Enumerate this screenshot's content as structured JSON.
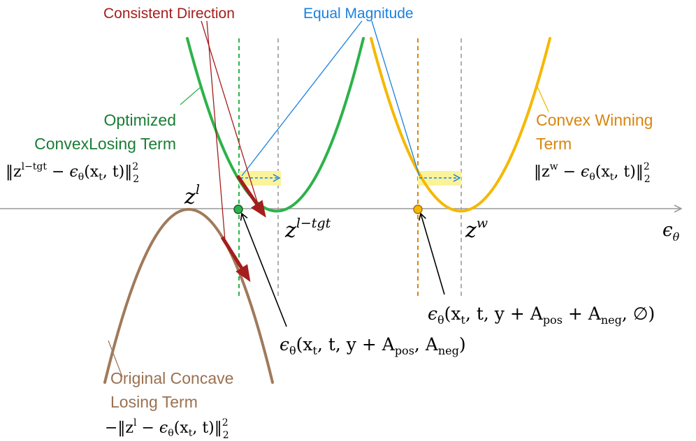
{
  "annotations": {
    "consistent_direction": "Consistent Direction",
    "equal_magnitude": "Equal Magnitude"
  },
  "curves": {
    "optimized_losing": {
      "label_line1": "Optimized",
      "label_line2": "ConvexLosing Term",
      "formula": "‖z^{l−tgt} − ε_θ(x_t, t)‖²₂",
      "formula_base": "‖z",
      "formula_sup": "l−tgt",
      "formula_rest": " − ϵ",
      "formula_sub": "θ",
      "formula_tail": "(x",
      "formula_t": "t",
      "formula_end": ", t)‖",
      "formula_exp": "2",
      "formula_low": "2"
    },
    "convex_winning": {
      "label_line1": "Convex Winning",
      "label_line2": "Term",
      "formula_base": "‖z",
      "formula_sup": "w",
      "formula_rest": " − ϵ",
      "formula_sub": "θ",
      "formula_tail": "(x",
      "formula_t": "t",
      "formula_end": ", t)‖",
      "formula_exp": "2",
      "formula_low": "2"
    },
    "original_concave": {
      "label_line1": "Original Concave",
      "label_line2": "Losing Term",
      "formula_base": "−‖z",
      "formula_sup": "l",
      "formula_rest": " − ϵ",
      "formula_sub": "θ",
      "formula_tail": "(x",
      "formula_t": "t",
      "formula_end": ", t)‖",
      "formula_exp": "2",
      "formula_low": "2"
    }
  },
  "points": {
    "z_l": {
      "base": "z",
      "sup": "l"
    },
    "z_l_tgt": {
      "base": "z",
      "sup": "l−tgt"
    },
    "z_w": {
      "base": "z",
      "sup": "w"
    },
    "axis_label": {
      "base": "ϵ",
      "sub": "θ"
    }
  },
  "callouts": {
    "green_point": {
      "pre": "ϵ",
      "sub": "θ",
      "a": "(x",
      "t": "t",
      "b": ", t, y + A",
      "pos": "pos",
      "c": ", A",
      "neg": "neg",
      "d": ")"
    },
    "orange_point": {
      "pre": "ϵ",
      "sub": "θ",
      "a": "(x",
      "t": "t",
      "b": ", t, y + A",
      "pos": "pos",
      "c": " + A",
      "neg": "neg",
      "d": ", ∅)"
    }
  },
  "colors": {
    "green": "#2db24a",
    "green_text": "#1a7d35",
    "orange": "#f5b800",
    "orange_text": "#d8850f",
    "brown": "#a07a5a",
    "brown_text": "#9a7150",
    "red": "#a51d1d",
    "blue": "#1a80e0",
    "axis": "#9a9a9a",
    "highlight": "#fbf39a"
  }
}
